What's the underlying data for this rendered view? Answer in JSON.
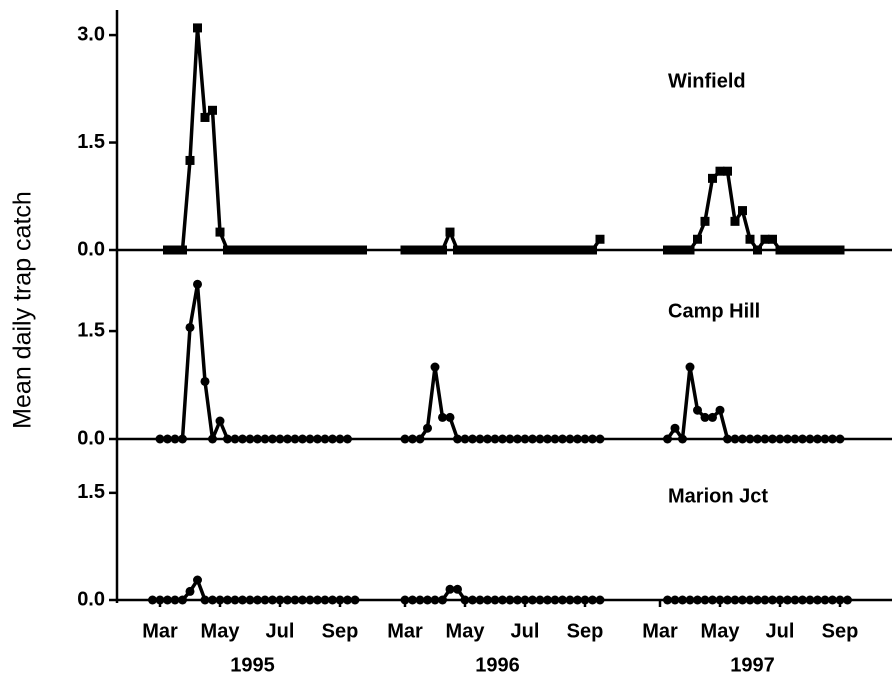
{
  "ylabel": "Mean daily trap catch",
  "x_axis": {
    "xlim": [
      2.5,
      10
    ],
    "xticks": [
      {
        "value": 3,
        "label": "Mar"
      },
      {
        "value": 5,
        "label": "May"
      },
      {
        "value": 7,
        "label": "Jul"
      },
      {
        "value": 9,
        "label": "Sep"
      }
    ],
    "groups": [
      "1995",
      "1996",
      "1997"
    ]
  },
  "chart_data": [
    {
      "type": "line",
      "title": "Winfield",
      "marker": "square",
      "color": "#000000",
      "ylim": [
        0,
        3.35
      ],
      "yticks": [
        {
          "value": 0,
          "label": "0.0"
        },
        1.5,
        {
          "value": 3,
          "label": "3.0"
        }
      ],
      "series": [
        {
          "x": [
            3.25,
            3.5,
            3.75,
            4,
            4.25,
            4.5,
            4.75,
            5,
            5.25,
            5.5,
            5.75,
            6,
            6.25,
            6.5,
            6.75,
            7,
            7.25,
            7.5,
            7.75,
            8,
            8.25,
            8.5,
            8.75,
            9,
            9.25,
            9.5,
            9.75
          ],
          "values": [
            0,
            0,
            0,
            1.25,
            3.1,
            1.85,
            1.95,
            0.25,
            0,
            0,
            0,
            0,
            0,
            0,
            0,
            0,
            0,
            0,
            0,
            0,
            0,
            0,
            0,
            0,
            0,
            0,
            0
          ]
        },
        {
          "x": [
            3,
            3.25,
            3.5,
            3.75,
            4,
            4.25,
            4.5,
            4.75,
            5,
            5.25,
            5.5,
            5.75,
            6,
            6.25,
            6.5,
            6.75,
            7,
            7.25,
            7.5,
            7.75,
            8,
            8.25,
            8.5,
            8.75,
            9,
            9.25,
            9.5
          ],
          "values": [
            0,
            0,
            0,
            0,
            0,
            0,
            0.25,
            0,
            0,
            0,
            0,
            0,
            0,
            0,
            0,
            0,
            0,
            0,
            0,
            0,
            0,
            0,
            0,
            0,
            0,
            0,
            0.15
          ]
        },
        {
          "x": [
            3.25,
            3.5,
            3.75,
            4,
            4.25,
            4.5,
            4.75,
            5,
            5.25,
            5.5,
            5.75,
            6,
            6.25,
            6.5,
            6.75,
            7,
            7.25,
            7.5,
            7.75,
            8,
            8.25,
            8.5,
            8.75,
            9
          ],
          "values": [
            0,
            0,
            0,
            0,
            0.15,
            0.4,
            1.0,
            1.1,
            1.1,
            0.4,
            0.55,
            0.15,
            0,
            0.15,
            0.15,
            0,
            0,
            0,
            0,
            0,
            0,
            0,
            0,
            0
          ]
        }
      ]
    },
    {
      "type": "line",
      "title": "Camp Hill",
      "marker": "circle",
      "color": "#000000",
      "ylim": [
        0,
        2.46
      ],
      "yticks": [
        {
          "value": 0,
          "label": "0.0"
        },
        1.5
      ],
      "series": [
        {
          "x": [
            3,
            3.25,
            3.5,
            3.75,
            4,
            4.25,
            4.5,
            4.75,
            5,
            5.25,
            5.5,
            5.75,
            6,
            6.25,
            6.5,
            6.75,
            7,
            7.25,
            7.5,
            7.75,
            8,
            8.25,
            8.5,
            8.75,
            9,
            9.25
          ],
          "values": [
            0,
            0,
            0,
            0,
            1.55,
            2.15,
            0.8,
            0,
            0.25,
            0,
            0,
            0,
            0,
            0,
            0,
            0,
            0,
            0,
            0,
            0,
            0,
            0,
            0,
            0,
            0,
            0
          ]
        },
        {
          "x": [
            3,
            3.25,
            3.5,
            3.75,
            4,
            4.25,
            4.5,
            4.75,
            5,
            5.25,
            5.5,
            5.75,
            6,
            6.25,
            6.5,
            6.75,
            7,
            7.25,
            7.5,
            7.75,
            8,
            8.25,
            8.5,
            8.75,
            9,
            9.25,
            9.5
          ],
          "values": [
            0,
            0,
            0,
            0.15,
            1.0,
            0.3,
            0.3,
            0,
            0,
            0,
            0,
            0,
            0,
            0,
            0,
            0,
            0,
            0,
            0,
            0,
            0,
            0,
            0,
            0,
            0,
            0,
            0
          ]
        },
        {
          "x": [
            3.25,
            3.5,
            3.75,
            4,
            4.25,
            4.5,
            4.75,
            5,
            5.25,
            5.5,
            5.75,
            6,
            6.25,
            6.5,
            6.75,
            7,
            7.25,
            7.5,
            7.75,
            8,
            8.25,
            8.5,
            8.75,
            9
          ],
          "values": [
            0,
            0.15,
            0,
            1.0,
            0.4,
            0.3,
            0.3,
            0.4,
            0,
            0,
            0,
            0,
            0,
            0,
            0,
            0,
            0,
            0,
            0,
            0,
            0,
            0,
            0,
            0
          ]
        }
      ]
    },
    {
      "type": "line",
      "title": "Marion Jct",
      "marker": "circle",
      "color": "#000000",
      "ylim": [
        0,
        2.03
      ],
      "yticks": [
        {
          "value": 0,
          "label": "0.0"
        },
        1.5
      ],
      "series": [
        {
          "x": [
            2.75,
            3,
            3.25,
            3.5,
            3.75,
            4,
            4.25,
            4.5,
            4.75,
            5,
            5.25,
            5.5,
            5.75,
            6,
            6.25,
            6.5,
            6.75,
            7,
            7.25,
            7.5,
            7.75,
            8,
            8.25,
            8.5,
            8.75,
            9,
            9.25,
            9.5
          ],
          "values": [
            0,
            0,
            0,
            0,
            0,
            0.12,
            0.28,
            0,
            0,
            0,
            0,
            0,
            0,
            0,
            0,
            0,
            0,
            0,
            0,
            0,
            0,
            0,
            0,
            0,
            0,
            0,
            0,
            0
          ]
        },
        {
          "x": [
            3,
            3.25,
            3.5,
            3.75,
            4,
            4.25,
            4.5,
            4.75,
            5,
            5.25,
            5.5,
            5.75,
            6,
            6.25,
            6.5,
            6.75,
            7,
            7.25,
            7.5,
            7.75,
            8,
            8.25,
            8.5,
            8.75,
            9,
            9.25,
            9.5
          ],
          "values": [
            0,
            0,
            0,
            0,
            0,
            0,
            0.15,
            0.15,
            0,
            0,
            0,
            0,
            0,
            0,
            0,
            0,
            0,
            0,
            0,
            0,
            0,
            0,
            0,
            0,
            0,
            0,
            0
          ]
        },
        {
          "x": [
            3.25,
            3.5,
            3.75,
            4,
            4.25,
            4.5,
            4.75,
            5,
            5.25,
            5.5,
            5.75,
            6,
            6.25,
            6.5,
            6.75,
            7,
            7.25,
            7.5,
            7.75,
            8,
            8.25,
            8.5,
            8.75,
            9,
            9.25
          ],
          "values": [
            0,
            0,
            0,
            0,
            0,
            0,
            0,
            0,
            0,
            0,
            0,
            0,
            0,
            0,
            0,
            0,
            0,
            0,
            0,
            0,
            0,
            0,
            0,
            0,
            0
          ]
        }
      ]
    }
  ]
}
